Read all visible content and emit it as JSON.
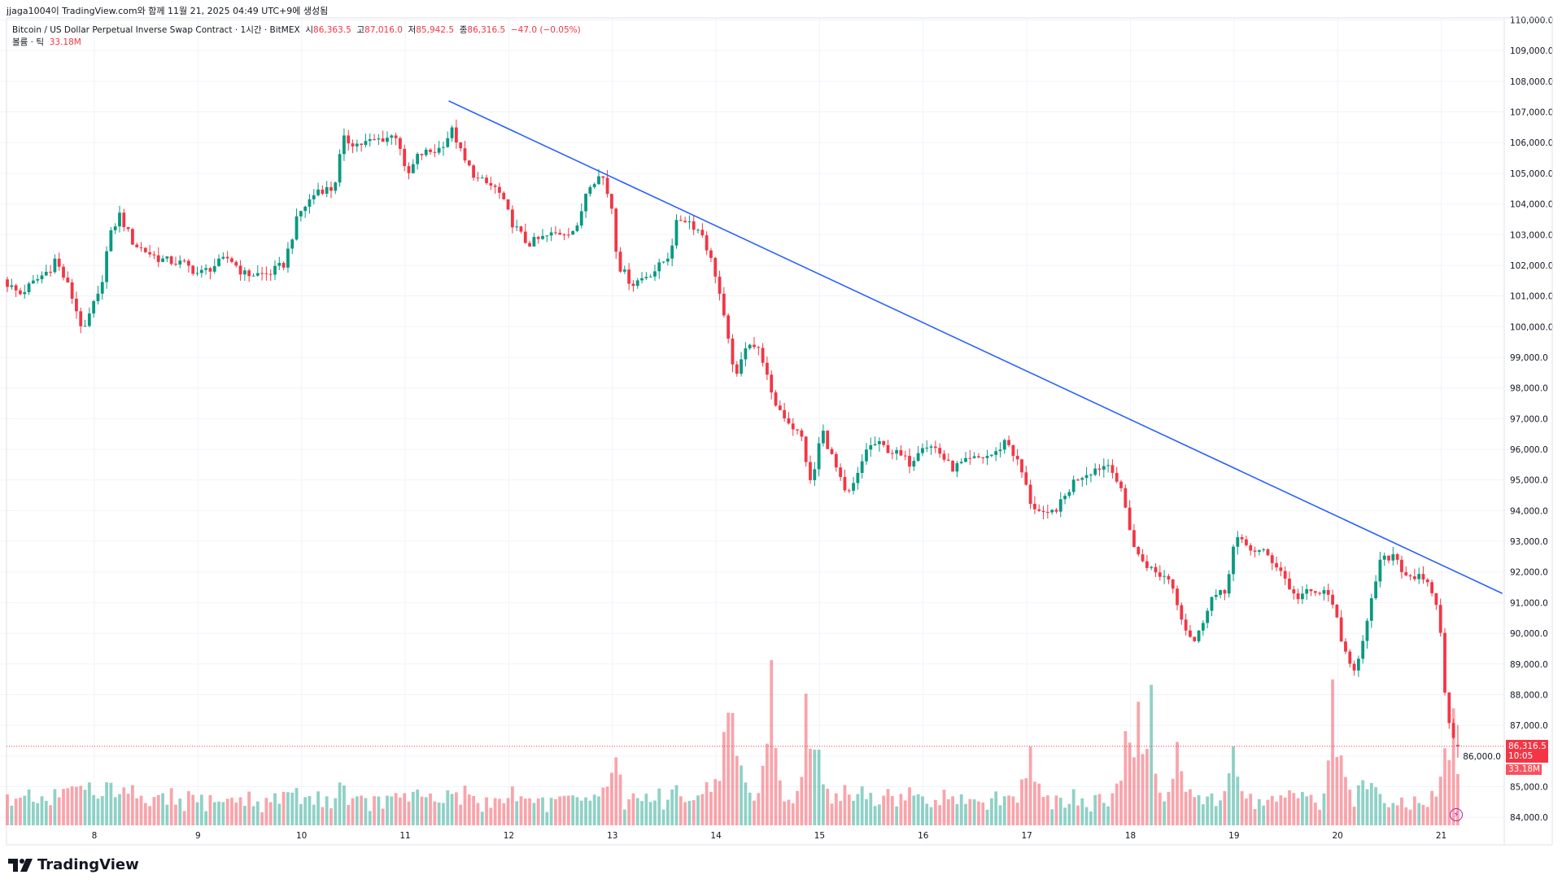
{
  "credit": "jjaga1004이 TradingView.com와 함께 11월 21, 2025 04:49 UTC+9에 생성됨",
  "legend": {
    "symbol": "Bitcoin / US Dollar Perpetual Inverse Swap Contract · 1시간 · BitMEX",
    "open_label": "시",
    "open": "86,363.5",
    "high_label": "고",
    "high": "87,016.0",
    "low_label": "저",
    "low": "85,942.5",
    "close_label": "종",
    "close": "86,316.5",
    "change": "−47.0 (−0.05%)",
    "volume_label": "볼륨 · 틱",
    "volume": "33.18M"
  },
  "last_price": {
    "price": "86,316.5",
    "countdown": "10:05",
    "volume": "33.18M",
    "color": "#f23645"
  },
  "brand": "TradingView",
  "chart_data": {
    "type": "candlestick",
    "timeframe": "1시간",
    "ylim": [
      84000,
      110000
    ],
    "grid": true,
    "up_color": "#089981",
    "down_color": "#f23645",
    "y_ticks": [
      "110,000.0",
      "109,000.0",
      "108,000.0",
      "107,000.0",
      "106,000.0",
      "105,000.0",
      "104,000.0",
      "103,000.0",
      "102,000.0",
      "101,000.0",
      "100,000.0",
      "99,000.0",
      "98,000.0",
      "97,000.0",
      "96,000.0",
      "95,000.0",
      "94,000.0",
      "93,000.0",
      "92,000.0",
      "91,000.0",
      "90,000.0",
      "89,000.0",
      "88,000.0",
      "87,000.0",
      "86,000.0",
      "85,000.0",
      "84,000.0"
    ],
    "x_ticks": [
      "8",
      "9",
      "10",
      "11",
      "12",
      "13",
      "14",
      "15",
      "16",
      "17",
      "18",
      "19",
      "20",
      "21"
    ],
    "last_candle": {
      "open": 86363.5,
      "high": 87016.0,
      "low": 85942.5,
      "close": 86316.5,
      "volume_m": 33.18
    },
    "close_path": [
      [
        7.16,
        101390
      ],
      [
        7.28,
        101060
      ],
      [
        7.57,
        101880
      ],
      [
        7.62,
        102200
      ],
      [
        7.76,
        101220
      ],
      [
        7.9,
        99760
      ],
      [
        7.97,
        100580
      ],
      [
        8.05,
        101060
      ],
      [
        8.14,
        102850
      ],
      [
        8.24,
        103660
      ],
      [
        8.38,
        102690
      ],
      [
        8.63,
        102200
      ],
      [
        8.87,
        102040
      ],
      [
        9.01,
        101710
      ],
      [
        9.3,
        102260
      ],
      [
        9.44,
        101710
      ],
      [
        9.68,
        101710
      ],
      [
        9.83,
        102040
      ],
      [
        9.97,
        103660
      ],
      [
        10.16,
        104480
      ],
      [
        10.31,
        104480
      ],
      [
        10.4,
        106100
      ],
      [
        10.55,
        105940
      ],
      [
        10.74,
        106100
      ],
      [
        10.93,
        106260
      ],
      [
        11.01,
        104800
      ],
      [
        11.13,
        105610
      ],
      [
        11.32,
        105770
      ],
      [
        11.46,
        106420
      ],
      [
        11.56,
        105450
      ],
      [
        11.7,
        104800
      ],
      [
        11.89,
        104480
      ],
      [
        12.04,
        103340
      ],
      [
        12.18,
        102690
      ],
      [
        12.42,
        103010
      ],
      [
        12.66,
        103180
      ],
      [
        12.76,
        104640
      ],
      [
        12.9,
        104960
      ],
      [
        13.0,
        103820
      ],
      [
        13.05,
        102040
      ],
      [
        13.19,
        101390
      ],
      [
        13.43,
        101880
      ],
      [
        13.55,
        102360
      ],
      [
        13.63,
        103500
      ],
      [
        13.72,
        103500
      ],
      [
        13.87,
        103010
      ],
      [
        14.01,
        101550
      ],
      [
        14.11,
        99600
      ],
      [
        14.2,
        98300
      ],
      [
        14.3,
        99600
      ],
      [
        14.44,
        99110
      ],
      [
        14.54,
        97650
      ],
      [
        14.68,
        97000
      ],
      [
        14.83,
        96350
      ],
      [
        14.92,
        94730
      ],
      [
        15.02,
        96680
      ],
      [
        15.16,
        95370
      ],
      [
        15.26,
        94400
      ],
      [
        15.36,
        95050
      ],
      [
        15.45,
        96020
      ],
      [
        15.55,
        96190
      ],
      [
        15.74,
        95860
      ],
      [
        15.88,
        95540
      ],
      [
        15.98,
        96190
      ],
      [
        16.13,
        96020
      ],
      [
        16.27,
        95370
      ],
      [
        16.46,
        95640
      ],
      [
        16.7,
        95860
      ],
      [
        16.8,
        96350
      ],
      [
        16.94,
        95370
      ],
      [
        17.04,
        94240
      ],
      [
        17.18,
        93750
      ],
      [
        17.33,
        94240
      ],
      [
        17.47,
        95050
      ],
      [
        17.66,
        95370
      ],
      [
        17.81,
        95540
      ],
      [
        17.93,
        94400
      ],
      [
        18.05,
        92610
      ],
      [
        18.24,
        91960
      ],
      [
        18.38,
        91800
      ],
      [
        18.53,
        90180
      ],
      [
        18.63,
        89690
      ],
      [
        18.77,
        91150
      ],
      [
        18.91,
        91310
      ],
      [
        19.01,
        93100
      ],
      [
        19.15,
        92770
      ],
      [
        19.3,
        92610
      ],
      [
        19.44,
        92120
      ],
      [
        19.59,
        91150
      ],
      [
        19.68,
        91310
      ],
      [
        19.88,
        91310
      ],
      [
        19.97,
        90990
      ],
      [
        20.02,
        89690
      ],
      [
        20.16,
        88880
      ],
      [
        20.26,
        89850
      ],
      [
        20.4,
        92290
      ],
      [
        20.55,
        92610
      ],
      [
        20.64,
        91960
      ],
      [
        20.79,
        91800
      ],
      [
        20.93,
        91310
      ],
      [
        21.01,
        89690
      ],
      [
        21.05,
        87250
      ],
      [
        21.13,
        86440
      ],
      [
        21.16,
        86316.5
      ]
    ],
    "volume_spikes_m": [
      [
        7.7,
        22
      ],
      [
        7.85,
        25
      ],
      [
        12.99,
        34
      ],
      [
        14.1,
        53
      ],
      [
        14.16,
        62
      ],
      [
        14.2,
        45
      ],
      [
        14.53,
        107
      ],
      [
        14.87,
        82
      ],
      [
        14.97,
        49
      ],
      [
        17.04,
        51
      ],
      [
        17.96,
        61
      ],
      [
        18.08,
        77
      ],
      [
        18.19,
        91
      ],
      [
        18.44,
        54
      ],
      [
        19.0,
        51
      ],
      [
        19.96,
        87
      ],
      [
        20.01,
        40
      ],
      [
        21.13,
        68
      ],
      [
        21.16,
        33.18
      ]
    ],
    "trendline": {
      "start": [
        11.42,
        107360
      ],
      "end": [
        21.59,
        91300
      ],
      "color": "#2962ff"
    }
  }
}
